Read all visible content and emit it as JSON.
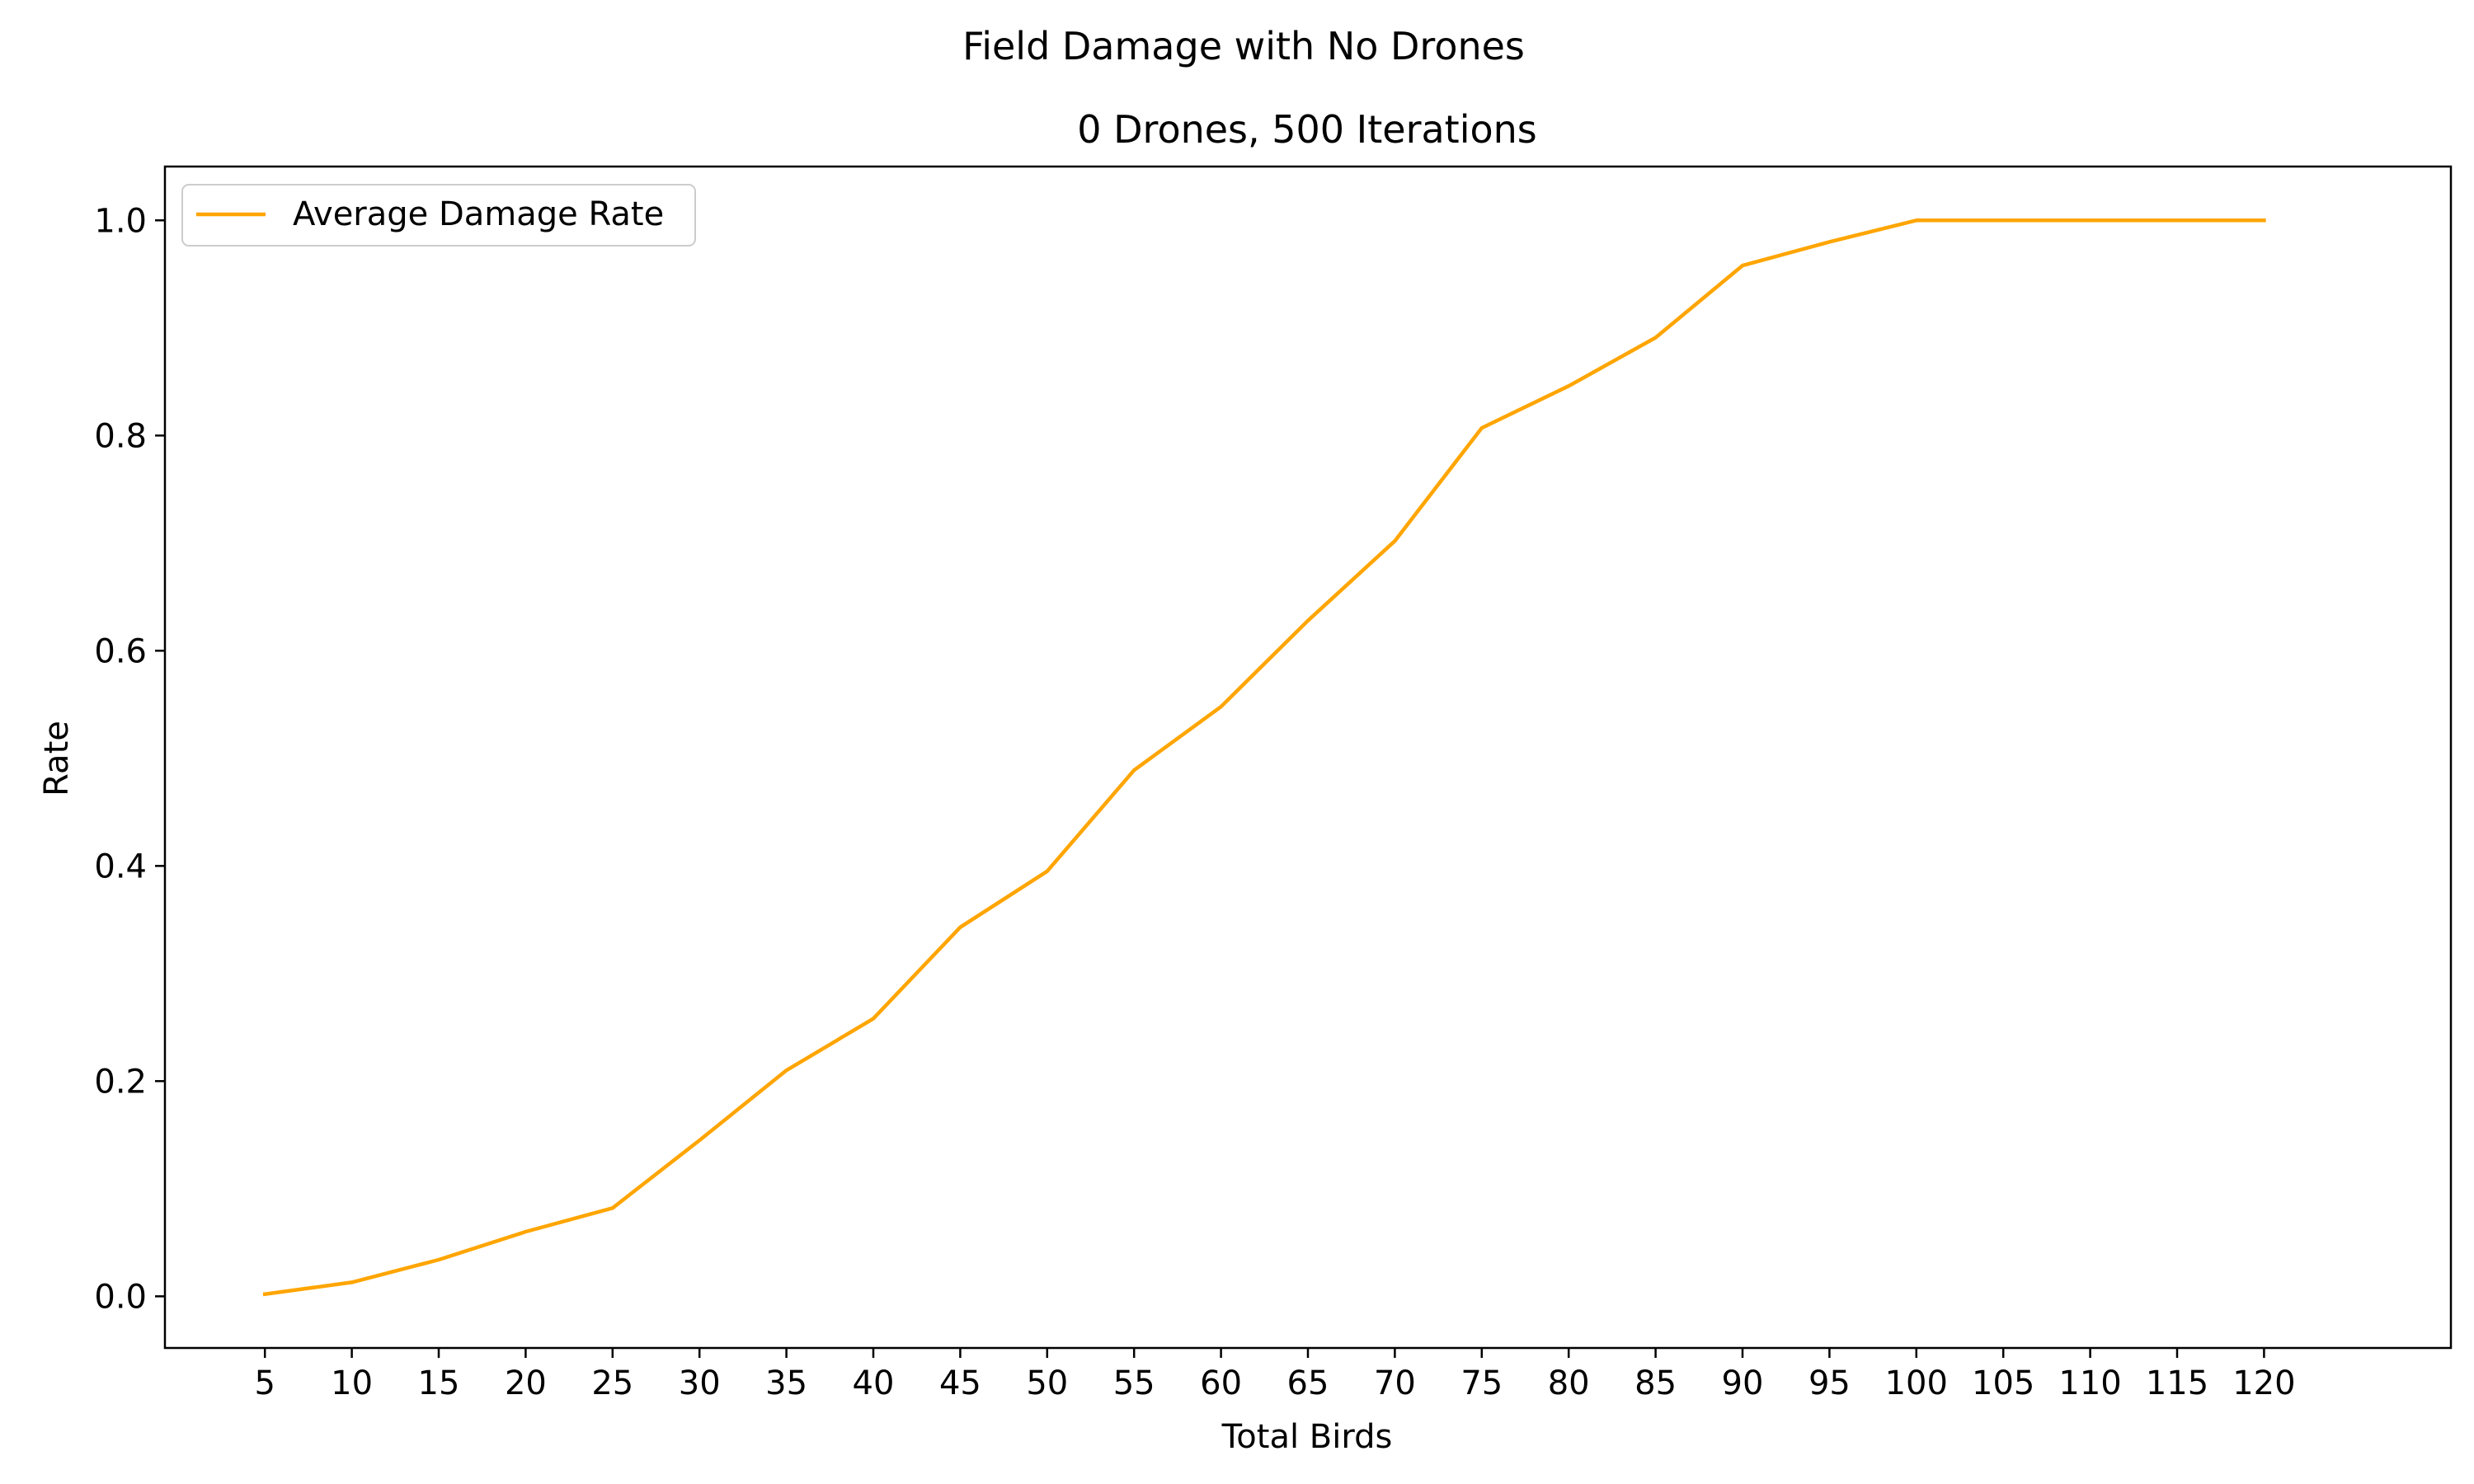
{
  "figure": {
    "suptitle": "Field Damage with No Drones"
  },
  "chart_data": {
    "type": "line",
    "title": "0 Drones, 500 Iterations",
    "xlabel": "Total Birds",
    "ylabel": "Rate",
    "x": [
      5,
      10,
      15,
      20,
      25,
      30,
      35,
      40,
      45,
      50,
      55,
      60,
      65,
      70,
      75,
      80,
      85,
      90,
      95,
      100,
      105,
      110,
      115,
      120
    ],
    "series": [
      {
        "name": "Average Damage Rate",
        "color": "#ffa500",
        "values": [
          0.002,
          0.013,
          0.034,
          0.06,
          0.082,
          0.145,
          0.21,
          0.258,
          0.343,
          0.395,
          0.489,
          0.548,
          0.628,
          0.702,
          0.807,
          0.846,
          0.891,
          0.958,
          0.98,
          1.0,
          1.0,
          1.0,
          1.0,
          1.0
        ]
      }
    ],
    "xticks": [
      "5",
      "10",
      "15",
      "20",
      "25",
      "30",
      "35",
      "40",
      "45",
      "50",
      "55",
      "60",
      "65",
      "70",
      "75",
      "80",
      "85",
      "90",
      "95",
      "100",
      "105",
      "110",
      "115",
      "120"
    ],
    "yticks": [
      "0.0",
      "0.2",
      "0.4",
      "0.6",
      "0.8",
      "1.0"
    ],
    "xlim": [
      -0.75,
      130.75
    ],
    "ylim": [
      -0.048,
      1.05
    ],
    "grid": false,
    "legend_position": "upper-left"
  }
}
